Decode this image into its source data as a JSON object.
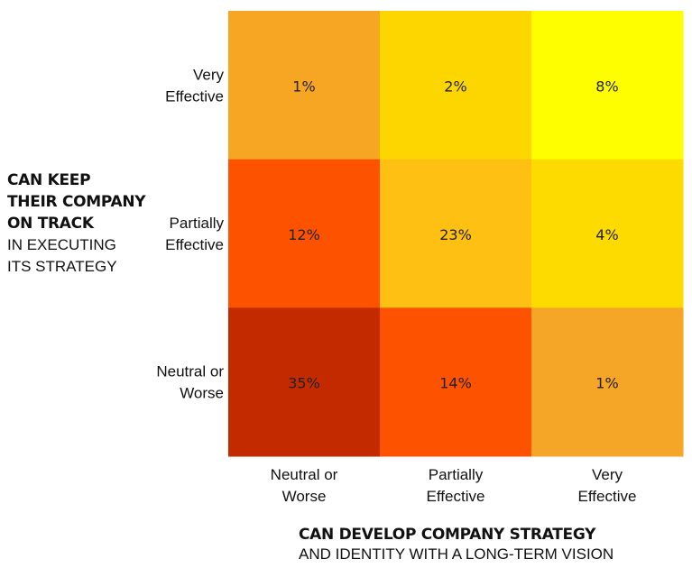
{
  "chart_data": {
    "type": "heatmap",
    "x_categories": [
      "Neutral or Worse",
      "Partially Effective",
      "Very Effective"
    ],
    "y_categories": [
      "Very Effective",
      "Partially Effective",
      "Neutral or Worse"
    ],
    "values": [
      [
        1,
        2,
        8
      ],
      [
        12,
        23,
        4
      ],
      [
        35,
        14,
        1
      ]
    ],
    "cell_labels": [
      [
        "1%",
        "2%",
        "8%"
      ],
      [
        "12%",
        "23%",
        "4%"
      ],
      [
        "35%",
        "14%",
        "1%"
      ]
    ],
    "x_tick_labels": [
      [
        "Neutral or",
        "Worse"
      ],
      [
        "Partially",
        "Effective"
      ],
      [
        "Very",
        "Effective"
      ]
    ],
    "y_tick_labels": [
      [
        "Very",
        "Effective"
      ],
      [
        "Partially",
        "Effective"
      ],
      [
        "Neutral or",
        "Worse"
      ]
    ],
    "cell_colors": [
      [
        "#F6A623",
        "#FDD600",
        "#FEFE00"
      ],
      [
        "#FD5300",
        "#FDC013",
        "#FDDA00"
      ],
      [
        "#C32A00",
        "#FD5300",
        "#F6A627"
      ]
    ],
    "ylabel_bold": [
      "CAN KEEP",
      "THEIR COMPANY",
      "ON TRACK"
    ],
    "ylabel_light": [
      "IN EXECUTING",
      "ITS STRATEGY"
    ],
    "xlabel_bold": "CAN DEVELOP COMPANY STRATEGY",
    "xlabel_light": "AND IDENTITY WITH A LONG-TERM VISION"
  }
}
